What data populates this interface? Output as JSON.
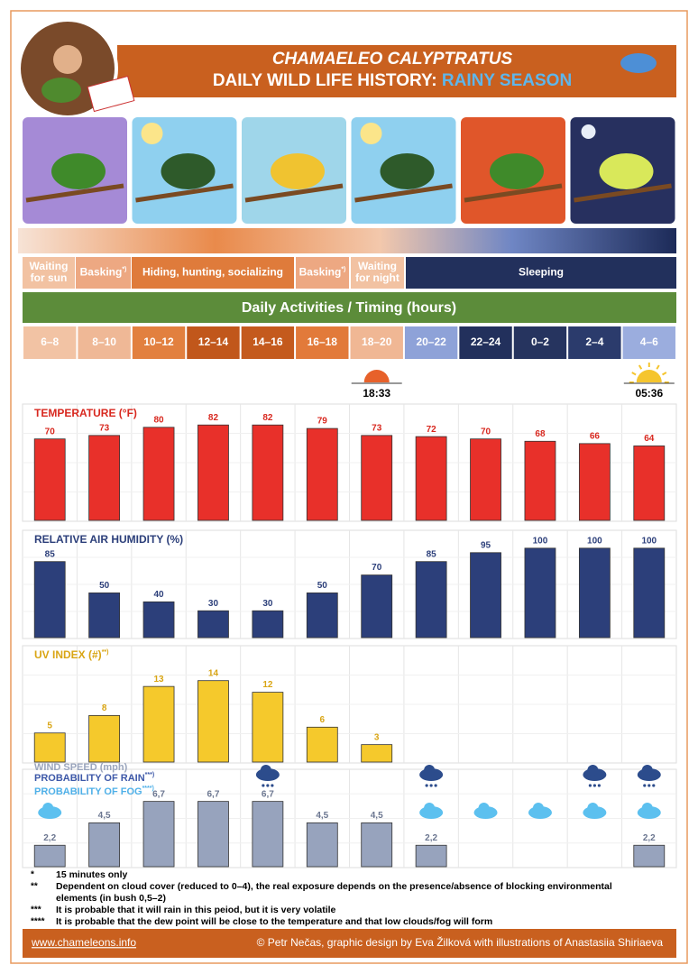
{
  "header": {
    "title": "CHAMAELEO CALYPTRATUS",
    "subtitle": "DAILY WILD LIFE HISTORY: ",
    "season": "RAINY SEASON"
  },
  "activities": [
    {
      "label": [
        "Waiting",
        "for sun"
      ]
    },
    {
      "label": [
        "Basking"
      ],
      "note": "*)"
    },
    {
      "label": [
        "Hiding, hunting, socializing"
      ]
    },
    {
      "label": [
        "Basking"
      ],
      "note": "*)"
    },
    {
      "label": [
        "Waiting",
        "for night"
      ]
    },
    {
      "label": [
        "Sleeping"
      ]
    }
  ],
  "section_title": "Daily Activities / Timing (hours)",
  "time_slots": [
    "6–8",
    "8–10",
    "10–12",
    "12–14",
    "14–16",
    "16–18",
    "18–20",
    "20–22",
    "22–24",
    "0–2",
    "2–4",
    "4–6"
  ],
  "time_slot_colors": [
    "#f2c3a4",
    "#efb896",
    "#e2803f",
    "#c1571b",
    "#c45a1d",
    "#e27a3a",
    "#f0b794",
    "#8ea2d8",
    "#22305c",
    "#26345f",
    "#2b3b6c",
    "#9badde"
  ],
  "sunset": "18:33",
  "sunrise": "05:36",
  "chart_data": [
    {
      "type": "bar",
      "title": "TEMPERATURE (°F)",
      "color": "#e8302a",
      "label_color": "#d8281f",
      "title_color": "#d8281f",
      "values": [
        70,
        73,
        80,
        82,
        82,
        79,
        73,
        72,
        70,
        68,
        66,
        64
      ],
      "ylim": [
        0,
        100
      ]
    },
    {
      "type": "bar",
      "title": "RELATIVE AIR HUMIDITY (%)",
      "color": "#2c3f7a",
      "label_color": "#2c3f7a",
      "title_color": "#2c3f7a",
      "values": [
        85,
        50,
        40,
        30,
        30,
        50,
        70,
        85,
        95,
        100,
        100,
        100
      ],
      "ylim": [
        0,
        120
      ]
    },
    {
      "type": "bar",
      "title": "UV INDEX (#)",
      "title_note": "**)",
      "color": "#f5c92c",
      "label_color": "#d9a514",
      "title_color": "#d9a514",
      "values": [
        5,
        8,
        13,
        14,
        12,
        6,
        3,
        null,
        null,
        null,
        null,
        null
      ],
      "ylim": [
        0,
        20
      ]
    },
    {
      "type": "bar",
      "title": "WIND SPEED (mph)",
      "color": "#97a3bd",
      "label_color": "#6b7690",
      "title_color": "#9aa5bd",
      "rain_title": "PROBABILITY OF RAIN",
      "rain_note": "***)",
      "fog_title": "PROBABILITY OF FOG",
      "fog_note": "****)",
      "values": [
        2.2,
        4.5,
        6.7,
        6.7,
        6.7,
        4.5,
        4.5,
        2.2,
        null,
        null,
        null,
        2.2
      ],
      "value_labels": [
        "2,2",
        "4,5",
        "6,7",
        "6,7",
        "6,7",
        "4,5",
        "4,5",
        "2,2",
        null,
        null,
        null,
        "2,2"
      ],
      "ylim": [
        0,
        10
      ],
      "rain": [
        false,
        false,
        false,
        false,
        true,
        false,
        false,
        true,
        false,
        false,
        true,
        true
      ],
      "fog": [
        true,
        false,
        false,
        false,
        false,
        false,
        false,
        true,
        true,
        true,
        true,
        true
      ]
    }
  ],
  "footnotes": [
    {
      "mark": "*",
      "text": [
        "15 minutes only"
      ]
    },
    {
      "mark": "**",
      "text": [
        "Dependent on cloud cover (reduced to 0–4), the real exposure depends on the presence/absence of blocking environmental",
        "elements (in bush 0,5–2)"
      ]
    },
    {
      "mark": "***",
      "text": [
        "It is probable that it will rain in this peiod, but it is very volatile"
      ]
    },
    {
      "mark": "****",
      "text": [
        "It is probable that the dew point will be close to the temperature and that low clouds/fog will form"
      ]
    }
  ],
  "footer": {
    "website": "www.chameleons.info",
    "credits": "© Petr Nečas, graphic design by Eva Žilková with illustrations of Anastasiia Shiriaeva"
  }
}
